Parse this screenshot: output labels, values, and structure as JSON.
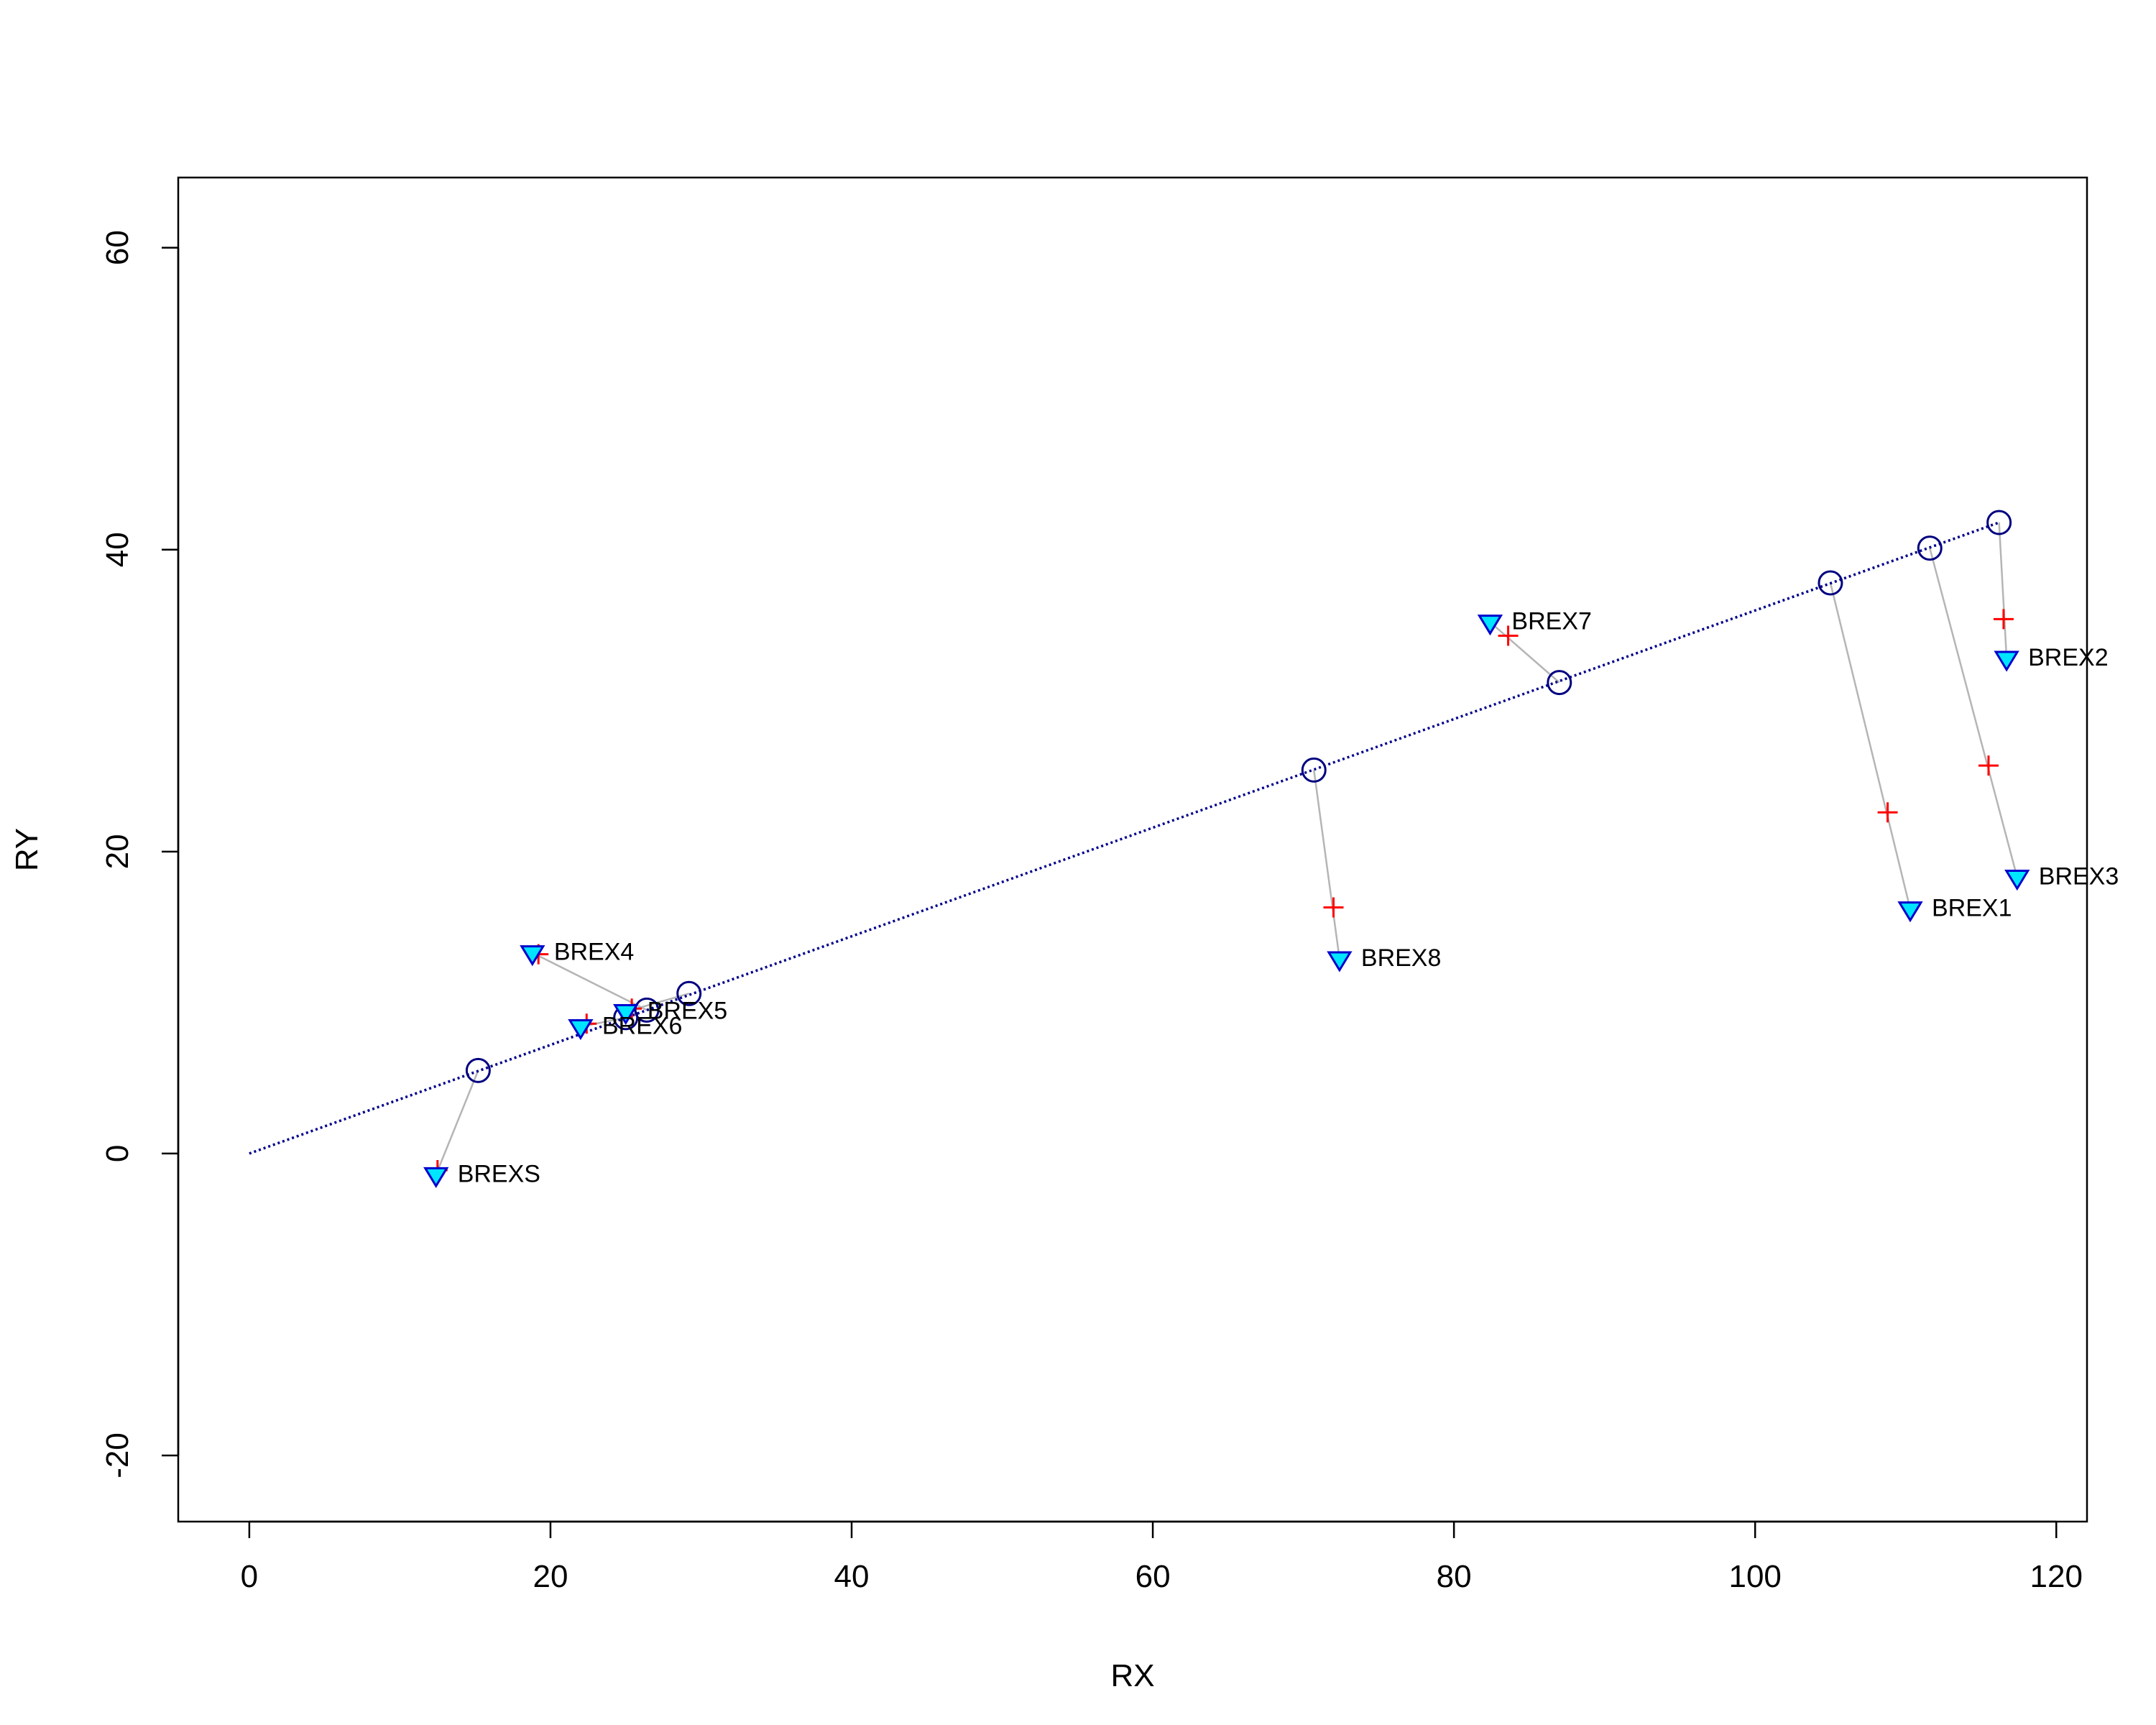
{
  "chart_data": {
    "type": "scatter",
    "title": "",
    "xlabel": "RX",
    "ylabel": "RY",
    "xlim": [
      -4.72,
      122.04
    ],
    "ylim": [
      -24.38,
      64.65
    ],
    "x_ticks": [
      0,
      20,
      40,
      60,
      80,
      100,
      120
    ],
    "y_ticks": [
      -20,
      0,
      20,
      40,
      60
    ],
    "x_tick_labels": [
      "0",
      "20",
      "40",
      "60",
      "80",
      "100",
      "120"
    ],
    "y_tick_labels": [
      "-20",
      "0",
      "20",
      "40",
      "60"
    ],
    "grid": false,
    "legend": "none",
    "reference_line": {
      "from": [
        0,
        0
      ],
      "to": [
        116.2,
        41.8
      ],
      "style": "dotted",
      "color": "#00008b"
    },
    "points": [
      {
        "label": "BREX1",
        "observed": [
          110.3,
          16.2
        ],
        "fitted": [
          108.8,
          22.6
        ],
        "projected": [
          105.0,
          37.8
        ]
      },
      {
        "label": "BREX2",
        "observed": [
          116.7,
          32.8
        ],
        "fitted": [
          116.5,
          35.4
        ],
        "projected": [
          116.2,
          41.8
        ]
      },
      {
        "label": "BREX3",
        "observed": [
          117.4,
          18.3
        ],
        "fitted": [
          115.5,
          25.7
        ],
        "projected": [
          111.6,
          40.1
        ]
      },
      {
        "label": "BREX4",
        "observed": [
          18.8,
          13.3
        ],
        "fitted": [
          19.2,
          13.2
        ],
        "projected": [
          26.4,
          9.5
        ]
      },
      {
        "label": "BREX5",
        "observed": [
          25.0,
          9.4
        ],
        "fitted": [
          25.4,
          9.6
        ],
        "projected": [
          29.2,
          10.6
        ]
      },
      {
        "label": "BREX6",
        "observed": [
          22.0,
          8.4
        ],
        "fitted": [
          22.4,
          8.6
        ],
        "projected": [
          25.0,
          9.0
        ]
      },
      {
        "label": "BREX7",
        "observed": [
          82.4,
          35.2
        ],
        "fitted": [
          83.6,
          34.3
        ],
        "projected": [
          87.0,
          31.2
        ]
      },
      {
        "label": "BREX8",
        "observed": [
          72.4,
          12.9
        ],
        "fitted": [
          72.0,
          16.3
        ],
        "projected": [
          70.7,
          25.4
        ]
      },
      {
        "label": "BREXS",
        "observed": [
          12.4,
          -1.4
        ],
        "fitted": [
          12.5,
          -1.1
        ],
        "projected": [
          15.2,
          5.5
        ]
      }
    ]
  },
  "colors": {
    "observed_fill": "#00e5ff",
    "observed_stroke": "#0000cd",
    "fitted": "#ff0000",
    "projected": "#000080",
    "connector": "#b5b5b5",
    "reference_line": "#00008b"
  }
}
